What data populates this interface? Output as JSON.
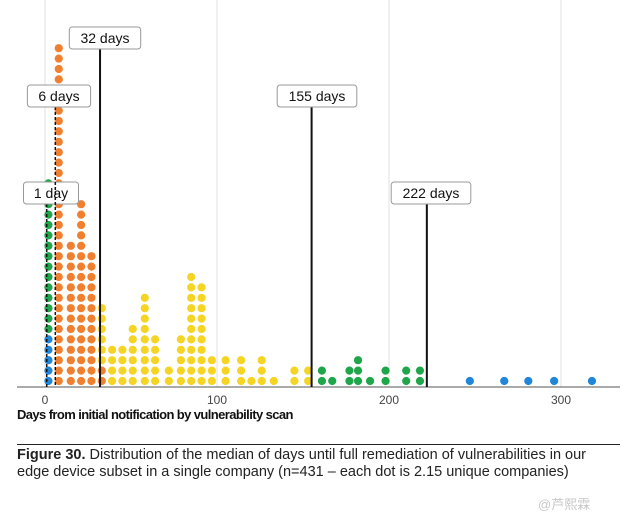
{
  "chart_data": {
    "type": "dot-histogram",
    "xlabel": "Days from initial notification by vulnerability scan",
    "xlim": [
      -3,
      340
    ],
    "xticks": [
      0,
      100,
      200,
      300
    ],
    "grid": true,
    "colors": {
      "blue": "#1f86d9",
      "green": "#1fa64a",
      "orange": "#f0802f",
      "yellow": "#f5d423"
    },
    "columns": [
      {
        "day": 2,
        "stack": [
          [
            "blue",
            5
          ],
          [
            "green",
            15
          ]
        ]
      },
      {
        "day": 8,
        "stack": [
          [
            "orange",
            33
          ]
        ]
      },
      {
        "day": 15,
        "stack": [
          [
            "orange",
            14
          ]
        ]
      },
      {
        "day": 21,
        "stack": [
          [
            "orange",
            18
          ]
        ]
      },
      {
        "day": 27,
        "stack": [
          [
            "orange",
            13
          ]
        ]
      },
      {
        "day": 33,
        "stack": [
          [
            "orange",
            2
          ],
          [
            "yellow",
            6
          ]
        ]
      },
      {
        "day": 39,
        "stack": [
          [
            "yellow",
            4
          ]
        ]
      },
      {
        "day": 45,
        "stack": [
          [
            "yellow",
            4
          ]
        ]
      },
      {
        "day": 51,
        "stack": [
          [
            "yellow",
            6
          ]
        ]
      },
      {
        "day": 58,
        "stack": [
          [
            "yellow",
            9
          ]
        ]
      },
      {
        "day": 64,
        "stack": [
          [
            "yellow",
            5
          ]
        ]
      },
      {
        "day": 72,
        "stack": [
          [
            "yellow",
            2
          ]
        ]
      },
      {
        "day": 79,
        "stack": [
          [
            "yellow",
            5
          ]
        ]
      },
      {
        "day": 85,
        "stack": [
          [
            "yellow",
            11
          ]
        ]
      },
      {
        "day": 91,
        "stack": [
          [
            "yellow",
            10
          ]
        ]
      },
      {
        "day": 97,
        "stack": [
          [
            "yellow",
            3
          ]
        ]
      },
      {
        "day": 105,
        "stack": [
          [
            "yellow",
            3
          ]
        ]
      },
      {
        "day": 114,
        "stack": [
          [
            "yellow",
            3
          ]
        ]
      },
      {
        "day": 120,
        "stack": [
          [
            "yellow",
            1
          ]
        ]
      },
      {
        "day": 126,
        "stack": [
          [
            "yellow",
            3
          ]
        ]
      },
      {
        "day": 133,
        "stack": [
          [
            "yellow",
            1
          ]
        ]
      },
      {
        "day": 145,
        "stack": [
          [
            "yellow",
            2
          ]
        ]
      },
      {
        "day": 153,
        "stack": [
          [
            "yellow",
            2
          ]
        ]
      },
      {
        "day": 161,
        "stack": [
          [
            "green",
            2
          ]
        ]
      },
      {
        "day": 167,
        "stack": [
          [
            "green",
            1
          ]
        ]
      },
      {
        "day": 177,
        "stack": [
          [
            "green",
            2
          ]
        ]
      },
      {
        "day": 182,
        "stack": [
          [
            "green",
            3
          ]
        ]
      },
      {
        "day": 189,
        "stack": [
          [
            "green",
            1
          ]
        ]
      },
      {
        "day": 198,
        "stack": [
          [
            "green",
            2
          ]
        ]
      },
      {
        "day": 210,
        "stack": [
          [
            "green",
            2
          ]
        ]
      },
      {
        "day": 218,
        "stack": [
          [
            "green",
            2
          ]
        ]
      },
      {
        "day": 247,
        "stack": [
          [
            "blue",
            1
          ]
        ]
      },
      {
        "day": 267,
        "stack": [
          [
            "blue",
            1
          ]
        ]
      },
      {
        "day": 281,
        "stack": [
          [
            "blue",
            1
          ]
        ]
      },
      {
        "day": 296,
        "stack": [
          [
            "blue",
            1
          ]
        ]
      },
      {
        "day": 318,
        "stack": [
          [
            "blue",
            1
          ]
        ]
      }
    ],
    "annotations": [
      {
        "day": 1,
        "label": "1 day",
        "style": "dashed"
      },
      {
        "day": 6,
        "label": "6 days",
        "style": "dashed"
      },
      {
        "day": 32,
        "label": "32 days",
        "style": "solid"
      },
      {
        "day": 155,
        "label": "155 days",
        "style": "solid"
      },
      {
        "day": 222,
        "label": "222 days",
        "style": "solid"
      }
    ]
  },
  "caption": {
    "figure": "Figure 30.",
    "text": " Distribution of the median of days until full remediation of vulnerabilities in our edge device subset in a single company (n=431 – each dot is 2.15 unique companies)"
  },
  "watermark": "@芦熙霖"
}
